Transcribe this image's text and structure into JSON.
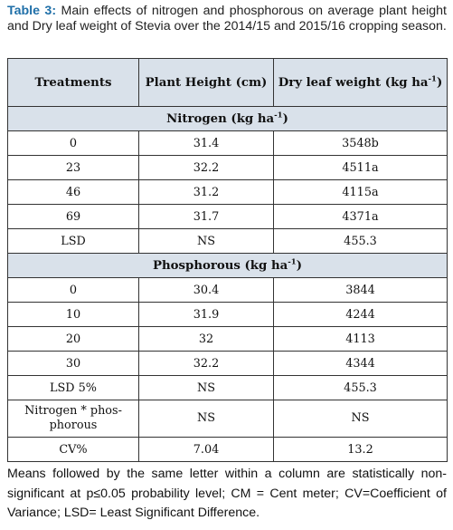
{
  "caption": {
    "label": "Table 3:",
    "text": "Main effects of nitrogen and phosphorous on average plant height and Dry leaf weight of Stevia over the 2014/15 and 2015/16 cropping season."
  },
  "table": {
    "headers": {
      "treatments": "Treatments",
      "plant_height": "Plant Height (cm)",
      "dry_leaf_weight": "Dry leaf weight (kg ha",
      "dry_leaf_weight_sup": "-1",
      "dry_leaf_weight_close": ")"
    },
    "nitrogen": {
      "title": "Nitrogen (kg ha",
      "title_sup": "-1",
      "title_close": ")",
      "rows": [
        {
          "treatment": "0",
          "height": "31.4",
          "weight": "3548b"
        },
        {
          "treatment": "23",
          "height": "32.2",
          "weight": "4511a"
        },
        {
          "treatment": "46",
          "height": "31.2",
          "weight": "4115a"
        },
        {
          "treatment": "69",
          "height": "31.7",
          "weight": "4371a"
        },
        {
          "treatment": "LSD",
          "height": "NS",
          "weight": "455.3"
        }
      ]
    },
    "phosphorous": {
      "title": "Phosphorous (kg ha",
      "title_sup": "-1",
      "title_close": ")",
      "rows": [
        {
          "treatment": "0",
          "height": "30.4",
          "weight": "3844"
        },
        {
          "treatment": "10",
          "height": "31.9",
          "weight": "4244"
        },
        {
          "treatment": "20",
          "height": "32",
          "weight": "4113"
        },
        {
          "treatment": "30",
          "height": "32.2",
          "weight": "4344"
        },
        {
          "treatment": "LSD 5%",
          "height": "NS",
          "weight": "455.3"
        }
      ]
    },
    "interaction": {
      "treatment": "Nitrogen * phos-phorous",
      "height": "NS",
      "weight": "NS"
    },
    "cv": {
      "treatment": "CV%",
      "height": "7.04",
      "weight": "13.2"
    }
  },
  "footnote": "Means followed by the same letter within a column are statistically non-significant at p≤0.05 probability level; CM = Cent meter; CV=Coefficient of Variance; LSD= Least Significant Difference."
}
